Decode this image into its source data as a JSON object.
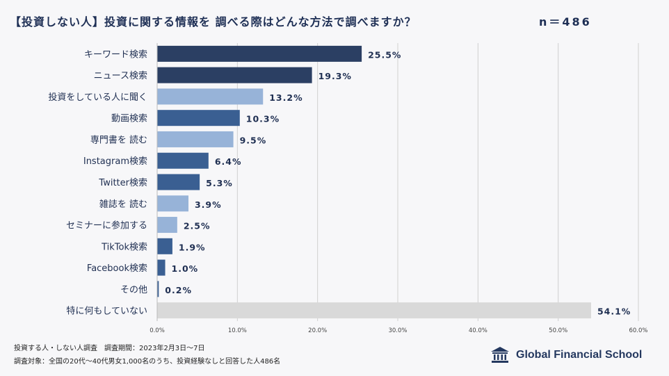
{
  "header": {
    "title": "【投資しない人】投資に関する情報を 調べる際はどんな方法で調べますか？",
    "n_label": "n＝486"
  },
  "colors": {
    "dark": "#2b3f63",
    "mid": "#3a5f92",
    "light": "#97b3d8",
    "gray": "#d9d9d9",
    "grid": "#d0d0d0",
    "text": "#1f2f52"
  },
  "chart_data": {
    "type": "bar",
    "orientation": "horizontal",
    "categories": [
      "キーワード検索",
      "ニュース検索",
      "投資をしている人に聞く",
      "動画検索",
      "専門書を 読む",
      "Instagram検索",
      "Twitter検索",
      "雑誌を 読む",
      "セミナーに参加する",
      "TikTok検索",
      "Facebook検索",
      "その他",
      "特に何もしていない"
    ],
    "values": [
      25.5,
      19.3,
      13.2,
      10.3,
      9.5,
      6.4,
      5.3,
      3.9,
      2.5,
      1.9,
      1.0,
      0.2,
      54.1
    ],
    "data_labels": [
      "25.5%",
      "19.3%",
      "13.2%",
      "10.3%",
      "9.5%",
      "6.4%",
      "5.3%",
      "3.9%",
      "2.5%",
      "1.9%",
      "1.0%",
      "0.2%",
      "54.1%"
    ],
    "bar_colors": [
      "dark",
      "dark",
      "light",
      "mid",
      "light",
      "mid",
      "mid",
      "light",
      "light",
      "mid",
      "mid",
      "mid",
      "gray"
    ],
    "xlim": [
      0,
      60
    ],
    "xticks": [
      0,
      10,
      20,
      30,
      40,
      50,
      60
    ],
    "xtick_labels": [
      "0.0%",
      "10.0%",
      "20.0%",
      "30.0%",
      "40.0%",
      "50.0%",
      "60.0%"
    ],
    "grid": true
  },
  "footer": {
    "line1": "投資する人・しない人調査　調査期間：2023年2月3日～7日",
    "line2": "調査対象：全国の20代～40代男女1,000名のうち、投資経験なしと回答した人486名"
  },
  "logo": {
    "text": "Global Financial School",
    "icon": "school-building-icon"
  }
}
